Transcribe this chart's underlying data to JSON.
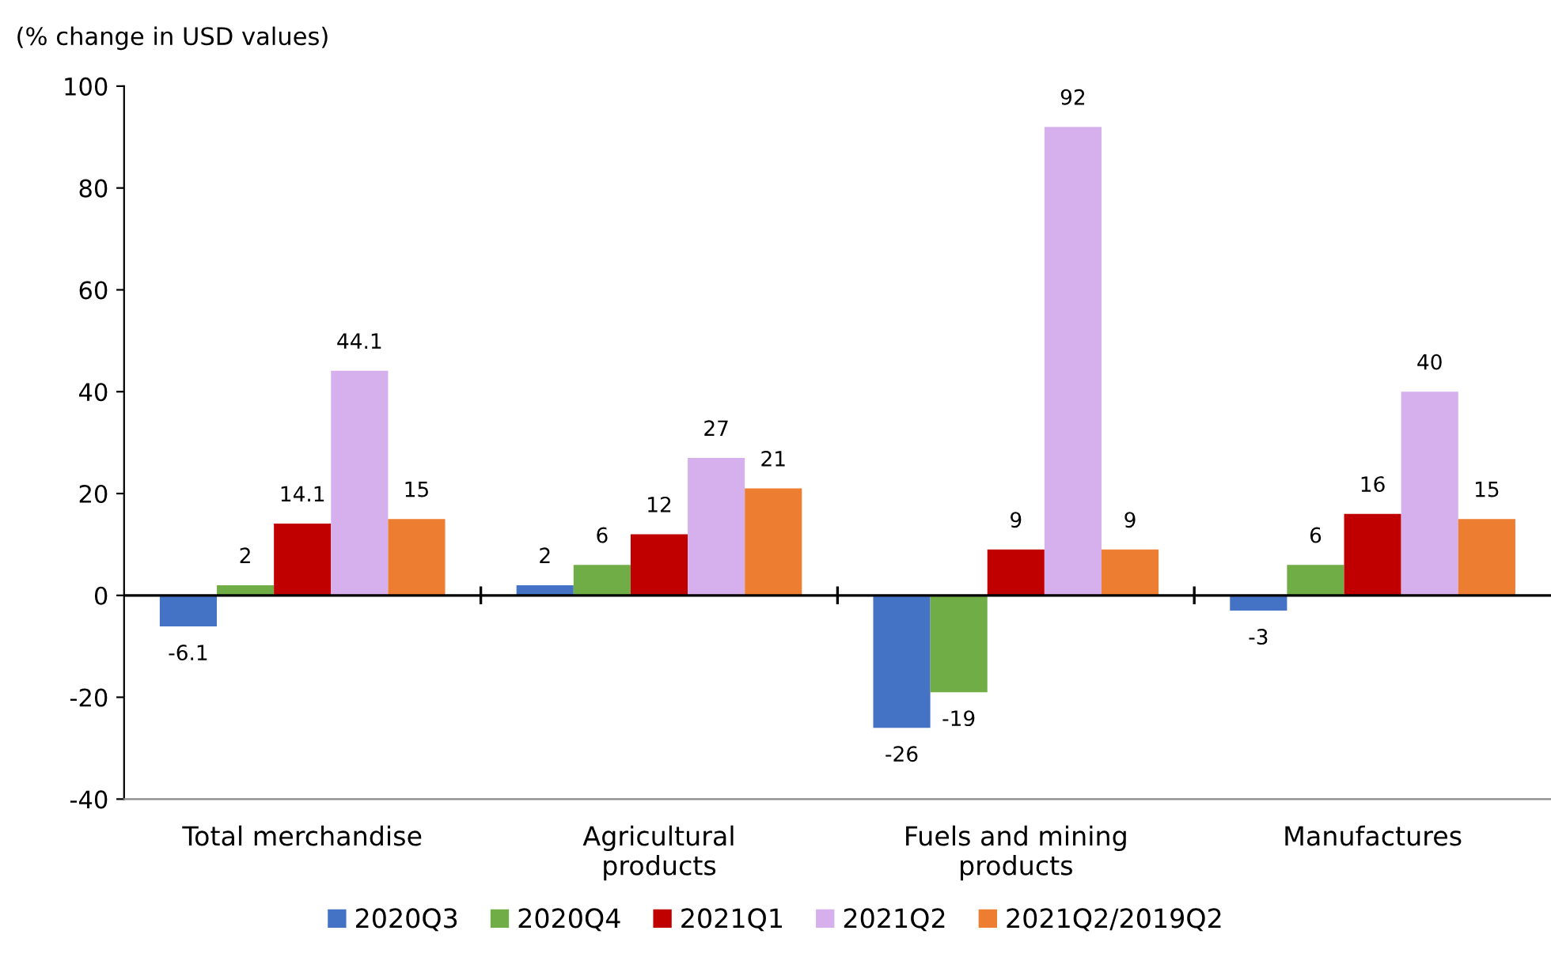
{
  "chart_data": {
    "type": "bar",
    "ylabel": "(% change in USD values)",
    "categories": [
      "Total merchandise",
      "Agricultural\nproducts",
      "Fuels and mining\nproducts",
      "Manufactures"
    ],
    "series": [
      {
        "name": "2020Q3",
        "color": "#4472c4",
        "values": [
          -6.1,
          2,
          -26,
          -3
        ]
      },
      {
        "name": "2020Q4",
        "color": "#70ad47",
        "values": [
          2,
          6,
          -19,
          6
        ]
      },
      {
        "name": "2021Q1",
        "color": "#c00000",
        "values": [
          14.1,
          12,
          9,
          16
        ]
      },
      {
        "name": "2021Q2",
        "color": "#d5b0ed",
        "values": [
          44.1,
          27,
          92,
          40
        ]
      },
      {
        "name": "2021Q2/2019Q2",
        "color": "#ed7d31",
        "values": [
          15,
          21,
          9,
          15
        ]
      }
    ],
    "ylim": [
      -40,
      100
    ],
    "yticks": [
      -40,
      -20,
      0,
      20,
      40,
      60,
      80,
      100
    ],
    "ref_lines": [
      {
        "axis": "y",
        "value": 0,
        "color": "#000000"
      }
    ],
    "data_labels": true,
    "legend": "bottom",
    "grid": false
  }
}
